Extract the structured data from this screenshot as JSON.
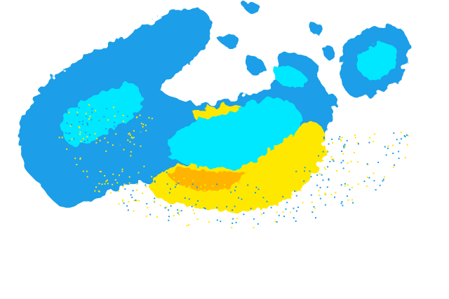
{
  "radar": {
    "colors": {
      "background": "#ffffff",
      "light_echo": "#1a9ee8",
      "moderate_echo": "#00e8ff",
      "heavy_echo": "#ffe800",
      "intense_echo": "#ffb400"
    }
  }
}
